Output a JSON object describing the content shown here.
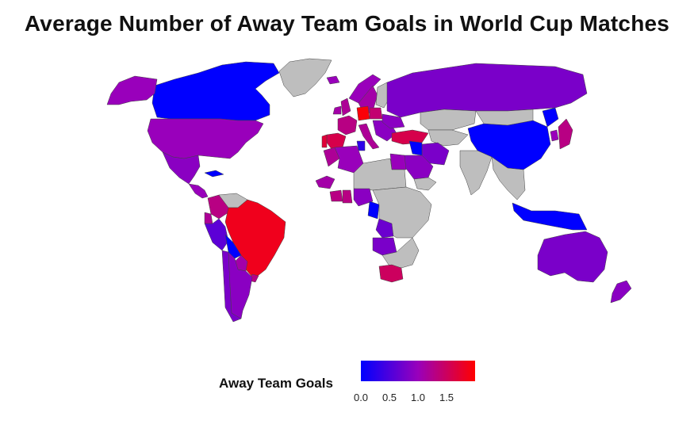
{
  "chart_data": {
    "type": "choropleth",
    "title": "Average Number of Away Team Goals in World Cup Matches",
    "legend": {
      "title": "Away Team Goals",
      "position": "bottom",
      "ticks": [
        "0.0",
        "0.5",
        "1.0",
        "1.5"
      ],
      "tick_values": [
        0.0,
        0.5,
        1.0,
        1.5
      ],
      "range": [
        0.0,
        2.0
      ],
      "colors": {
        "low": "#0000ff",
        "mid": "#9900bb",
        "high": "#ff0000"
      }
    },
    "missing_color": "#bebebe",
    "regions": [
      {
        "name": "Canada",
        "value": 0.0
      },
      {
        "name": "Alaska",
        "value": 1.0
      },
      {
        "name": "Greenland",
        "value": null
      },
      {
        "name": "United States",
        "value": 1.0
      },
      {
        "name": "Mexico",
        "value": 0.9
      },
      {
        "name": "Central America",
        "value": 1.0
      },
      {
        "name": "Cuba",
        "value": 0.0
      },
      {
        "name": "Colombia",
        "value": 1.3
      },
      {
        "name": "Venezuela",
        "value": null
      },
      {
        "name": "Peru",
        "value": 0.6
      },
      {
        "name": "Ecuador",
        "value": 1.2
      },
      {
        "name": "Brazil",
        "value": 1.85
      },
      {
        "name": "Bolivia",
        "value": 0.0
      },
      {
        "name": "Paraguay",
        "value": 1.1
      },
      {
        "name": "Uruguay",
        "value": 1.3
      },
      {
        "name": "Chile",
        "value": 0.8
      },
      {
        "name": "Argentina",
        "value": 0.9
      },
      {
        "name": "Iceland",
        "value": 1.0
      },
      {
        "name": "Norway",
        "value": 1.0
      },
      {
        "name": "Sweden",
        "value": 1.1
      },
      {
        "name": "Finland",
        "value": null
      },
      {
        "name": "United Kingdom",
        "value": 1.2
      },
      {
        "name": "Ireland",
        "value": 1.1
      },
      {
        "name": "France",
        "value": 1.3
      },
      {
        "name": "Spain",
        "value": 1.6
      },
      {
        "name": "Portugal",
        "value": 1.7
      },
      {
        "name": "Germany",
        "value": 1.95
      },
      {
        "name": "Poland",
        "value": 1.4
      },
      {
        "name": "Italy",
        "value": 1.2
      },
      {
        "name": "Balkans",
        "value": 0.9
      },
      {
        "name": "Turkey",
        "value": 1.6
      },
      {
        "name": "Russia",
        "value": 0.8
      },
      {
        "name": "Ukraine",
        "value": 0.9
      },
      {
        "name": "Kazakhstan",
        "value": null
      },
      {
        "name": "Central Asia",
        "value": null
      },
      {
        "name": "China",
        "value": 0.0
      },
      {
        "name": "Mongolia",
        "value": null
      },
      {
        "name": "North Korea",
        "value": 0.0
      },
      {
        "name": "South Korea",
        "value": 1.0
      },
      {
        "name": "Japan",
        "value": 1.3
      },
      {
        "name": "Iran",
        "value": 0.8
      },
      {
        "name": "Iraq",
        "value": 0.0
      },
      {
        "name": "Saudi Arabia",
        "value": 0.9
      },
      {
        "name": "Arabian Peninsula",
        "value": null
      },
      {
        "name": "India",
        "value": null
      },
      {
        "name": "Southeast Asia",
        "value": null
      },
      {
        "name": "Indonesia",
        "value": 0.0
      },
      {
        "name": "Australia",
        "value": 0.8
      },
      {
        "name": "New Zealand",
        "value": 0.9
      },
      {
        "name": "Morocco",
        "value": 1.2
      },
      {
        "name": "Algeria",
        "value": 1.0
      },
      {
        "name": "Tunisia",
        "value": 0.3
      },
      {
        "name": "Egypt",
        "value": 1.0
      },
      {
        "name": "Sahara",
        "value": null
      },
      {
        "name": "Senegal",
        "value": 1.1
      },
      {
        "name": "Ivory Coast",
        "value": 1.3
      },
      {
        "name": "Ghana",
        "value": 1.3
      },
      {
        "name": "Nigeria",
        "value": 0.9
      },
      {
        "name": "Cameroon",
        "value": 0.0
      },
      {
        "name": "Central Africa",
        "value": null
      },
      {
        "name": "Angola",
        "value": 0.8
      },
      {
        "name": "Zaire",
        "value": 0.7
      },
      {
        "name": "Southern Africa",
        "value": null
      },
      {
        "name": "South Africa",
        "value": 1.5
      }
    ]
  }
}
